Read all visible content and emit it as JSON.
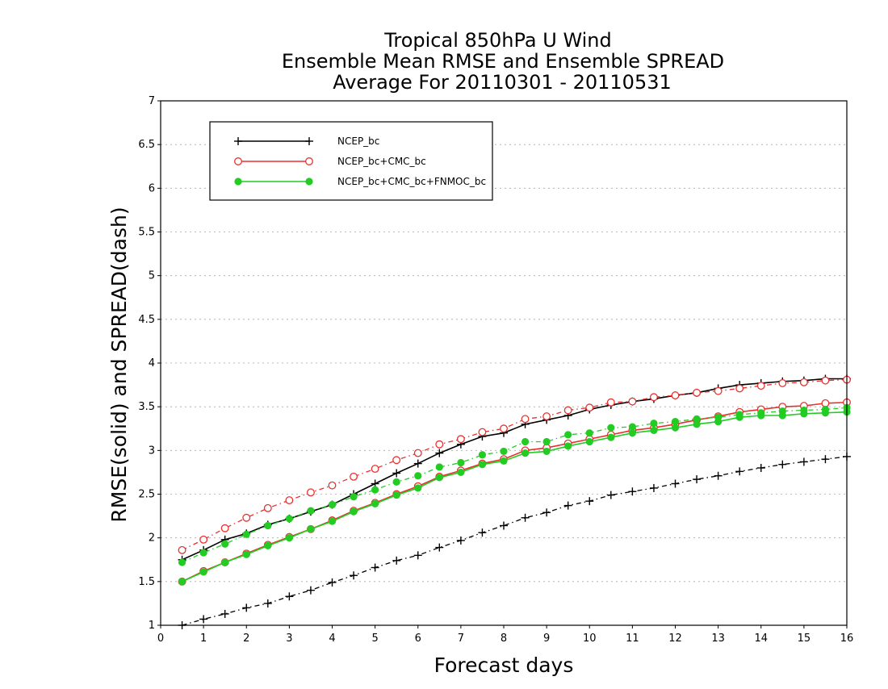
{
  "chart_data": {
    "type": "line",
    "title": [
      "Tropical 850hPa U Wind",
      "Ensemble Mean RMSE and Ensemble SPREAD",
      "Average For 20110301 - 20110531"
    ],
    "xlabel": "Forecast days",
    "ylabel": "RMSE(solid) and SPREAD(dash)",
    "xlim": [
      0,
      16
    ],
    "ylim": [
      1,
      7
    ],
    "x_ticks": [
      "0",
      "1",
      "2",
      "3",
      "4",
      "5",
      "6",
      "7",
      "8",
      "9",
      "10",
      "11",
      "12",
      "13",
      "14",
      "15",
      "16"
    ],
    "y_ticks": [
      "1",
      "1.5",
      "2",
      "2.5",
      "3",
      "3.5",
      "4",
      "4.5",
      "5",
      "5.5",
      "6",
      "6.5",
      "7"
    ],
    "grid": "horizontal dotted",
    "legend_position": "top-left",
    "x": [
      0.5,
      1,
      1.5,
      2,
      2.5,
      3,
      3.5,
      4,
      4.5,
      5,
      5.5,
      6,
      6.5,
      7,
      7.5,
      8,
      8.5,
      9,
      9.5,
      10,
      10.5,
      11,
      11.5,
      12,
      12.5,
      13,
      13.5,
      14,
      14.5,
      15,
      15.5,
      16
    ],
    "series": [
      {
        "name": "NCEP_bc",
        "color": "#000000",
        "marker": "plus",
        "rmse": [
          1.75,
          1.86,
          1.98,
          2.05,
          2.15,
          2.22,
          2.3,
          2.38,
          2.5,
          2.62,
          2.74,
          2.85,
          2.97,
          3.07,
          3.16,
          3.2,
          3.3,
          3.35,
          3.4,
          3.47,
          3.52,
          3.56,
          3.59,
          3.63,
          3.66,
          3.71,
          3.75,
          3.77,
          3.79,
          3.8,
          3.82,
          3.82
        ],
        "spread": [
          1.0,
          1.07,
          1.13,
          1.2,
          1.25,
          1.33,
          1.4,
          1.49,
          1.57,
          1.66,
          1.74,
          1.8,
          1.89,
          1.97,
          2.06,
          2.14,
          2.23,
          2.29,
          2.37,
          2.42,
          2.49,
          2.53,
          2.57,
          2.62,
          2.67,
          2.71,
          2.76,
          2.8,
          2.84,
          2.87,
          2.9,
          2.93
        ]
      },
      {
        "name": "NCEP_bc+CMC_bc",
        "color": "#e8312f",
        "marker": "open-circle",
        "rmse": [
          1.5,
          1.62,
          1.72,
          1.82,
          1.92,
          2.01,
          2.1,
          2.2,
          2.31,
          2.4,
          2.5,
          2.59,
          2.7,
          2.77,
          2.85,
          2.9,
          3.0,
          3.03,
          3.08,
          3.13,
          3.18,
          3.23,
          3.26,
          3.3,
          3.35,
          3.39,
          3.44,
          3.47,
          3.5,
          3.51,
          3.54,
          3.55
        ],
        "spread": [
          1.86,
          1.98,
          2.11,
          2.23,
          2.34,
          2.43,
          2.52,
          2.6,
          2.7,
          2.79,
          2.89,
          2.97,
          3.07,
          3.13,
          3.21,
          3.25,
          3.36,
          3.39,
          3.46,
          3.49,
          3.55,
          3.56,
          3.61,
          3.63,
          3.66,
          3.68,
          3.71,
          3.74,
          3.77,
          3.78,
          3.8,
          3.81
        ]
      },
      {
        "name": "NCEP_bc+CMC_bc+FNMOC_bc",
        "color": "#22cc22",
        "marker": "filled-circle",
        "rmse": [
          1.5,
          1.61,
          1.72,
          1.81,
          1.91,
          2.0,
          2.1,
          2.19,
          2.3,
          2.39,
          2.49,
          2.57,
          2.69,
          2.75,
          2.84,
          2.88,
          2.97,
          2.99,
          3.05,
          3.1,
          3.15,
          3.2,
          3.23,
          3.26,
          3.3,
          3.33,
          3.38,
          3.4,
          3.4,
          3.42,
          3.43,
          3.44
        ],
        "spread": [
          1.72,
          1.83,
          1.93,
          2.04,
          2.14,
          2.22,
          2.31,
          2.38,
          2.47,
          2.55,
          2.64,
          2.71,
          2.81,
          2.86,
          2.95,
          2.99,
          3.1,
          3.1,
          3.18,
          3.2,
          3.26,
          3.27,
          3.31,
          3.33,
          3.36,
          3.38,
          3.41,
          3.43,
          3.45,
          3.46,
          3.47,
          3.49
        ]
      }
    ]
  }
}
